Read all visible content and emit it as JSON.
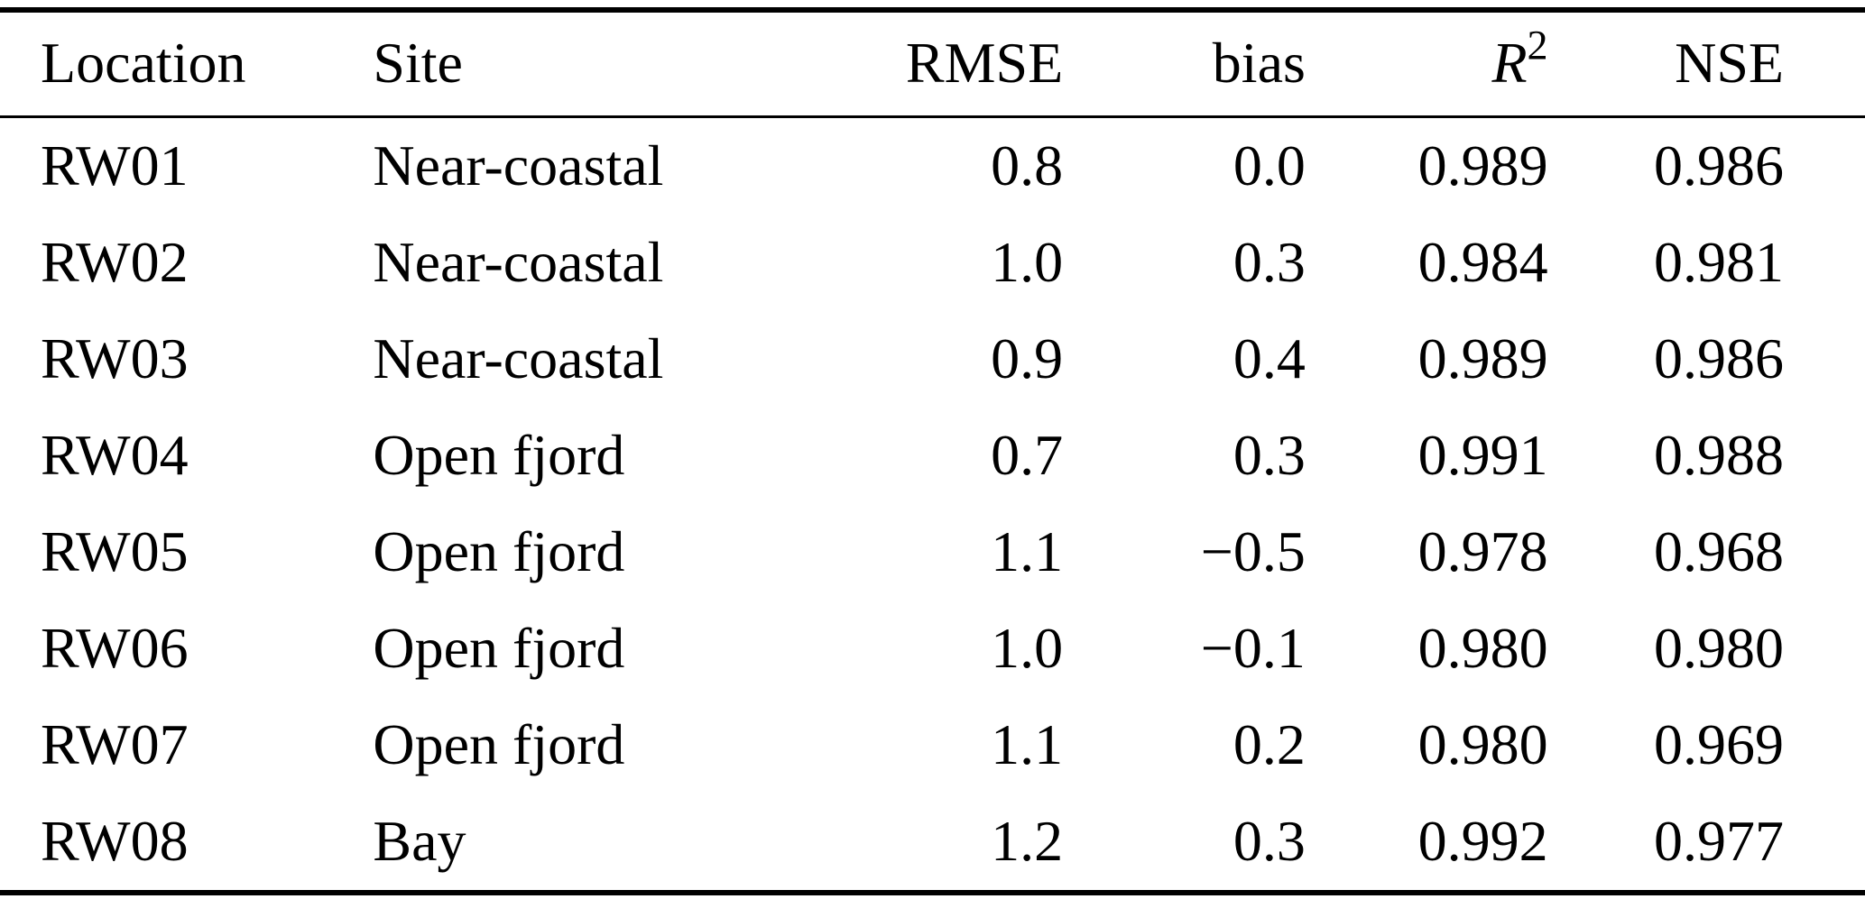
{
  "page": {
    "background": "#ffffff",
    "text_color": "#000000",
    "rule_color": "#000000"
  },
  "table": {
    "headers": {
      "location": "Location",
      "site": "Site",
      "rmse": "RMSE",
      "bias": "bias",
      "r2_base": "R",
      "r2_sup": "2",
      "nse": "NSE"
    },
    "rows": [
      [
        "RW01",
        "Near-coastal",
        "0.8",
        "0.0",
        "0.989",
        "0.986"
      ],
      [
        "RW02",
        "Near-coastal",
        "1.0",
        "0.3",
        "0.984",
        "0.981"
      ],
      [
        "RW03",
        "Near-coastal",
        "0.9",
        "0.4",
        "0.989",
        "0.986"
      ],
      [
        "RW04",
        "Open fjord",
        "0.7",
        "0.3",
        "0.991",
        "0.988"
      ],
      [
        "RW05",
        "Open fjord",
        "1.1",
        "−0.5",
        "0.978",
        "0.968"
      ],
      [
        "RW06",
        "Open fjord",
        "1.0",
        "−0.1",
        "0.980",
        "0.980"
      ],
      [
        "RW07",
        "Open fjord",
        "1.1",
        "0.2",
        "0.980",
        "0.969"
      ],
      [
        "RW08",
        "Bay",
        "1.2",
        "0.3",
        "0.992",
        "0.977"
      ]
    ]
  }
}
